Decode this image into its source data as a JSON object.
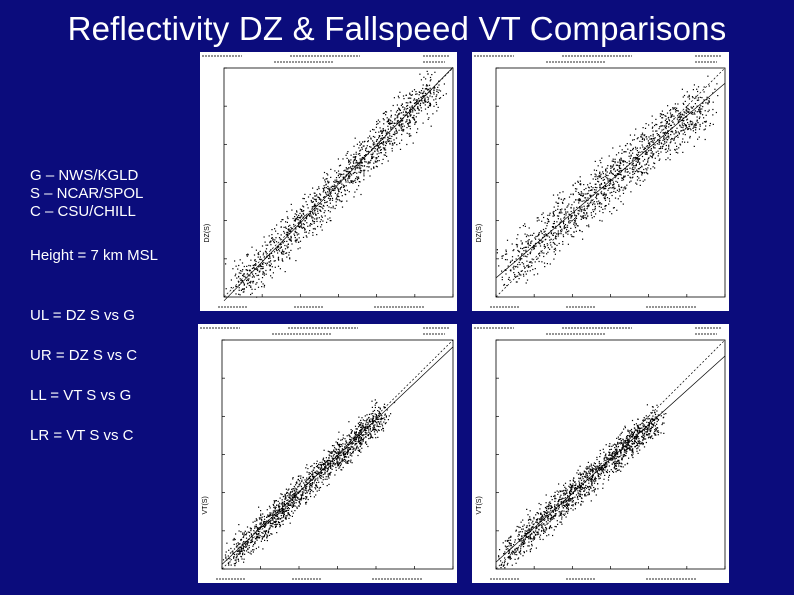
{
  "slide": {
    "title": "Reflectivity DZ & Fallspeed VT Comparisons",
    "key": [
      "G – NWS/KGLD",
      "S – NCAR/SPOL",
      "C – CSU/CHILL"
    ],
    "height": "Height = 7 km MSL",
    "quadrants": [
      "UL = DZ S vs G",
      "UR = DZ S vs C",
      "LL = VT S vs G",
      "LR = VT S vs C"
    ]
  },
  "colors": {
    "background": "#0b0c7c",
    "text": "#ffffff",
    "panel": "#ffffff",
    "ink": "#000000"
  },
  "chart_data": [
    {
      "type": "scatter",
      "panel": "UL",
      "ylabel": "DZ(S)",
      "xlim": [
        0,
        60
      ],
      "ylim": [
        0,
        60
      ],
      "fit": {
        "slope": 1.02,
        "intercept": -1
      },
      "cloud": {
        "n": 1400,
        "center": [
          30,
          30
        ],
        "spread": 4.5,
        "range": [
          2,
          55
        ],
        "seed": 11
      }
    },
    {
      "type": "scatter",
      "panel": "UR",
      "ylabel": "DZ(S)",
      "xlim": [
        0,
        60
      ],
      "ylim": [
        0,
        60
      ],
      "fit": {
        "slope": 0.85,
        "intercept": 5
      },
      "cloud": {
        "n": 1400,
        "center": [
          30,
          30
        ],
        "spread": 5.5,
        "range": [
          2,
          55
        ],
        "seed": 23
      }
    },
    {
      "type": "scatter",
      "panel": "LL",
      "ylabel": "VT(S)",
      "xlim": [
        0,
        10
      ],
      "ylim": [
        0,
        10
      ],
      "fit": {
        "slope": 0.95,
        "intercept": 0.2
      },
      "cloud": {
        "n": 1400,
        "center": [
          3,
          3
        ],
        "spread": 0.55,
        "range": [
          0.2,
          7
        ],
        "seed": 37
      }
    },
    {
      "type": "scatter",
      "panel": "LR",
      "ylabel": "VT(S)",
      "xlim": [
        0,
        10
      ],
      "ylim": [
        0,
        10
      ],
      "fit": {
        "slope": 0.9,
        "intercept": 0.3
      },
      "cloud": {
        "n": 1400,
        "center": [
          3,
          3
        ],
        "spread": 0.6,
        "range": [
          0.2,
          7
        ],
        "seed": 53
      }
    }
  ]
}
